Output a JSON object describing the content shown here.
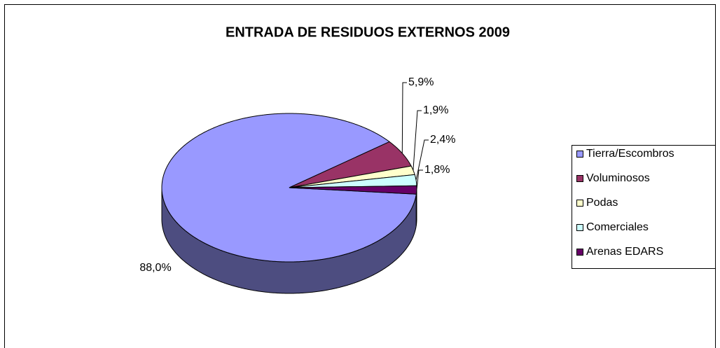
{
  "chart_data": {
    "type": "pie",
    "title": "ENTRADA DE RESIDUOS EXTERNOS 2009",
    "categories": [
      "Tierra/Escombros",
      "Voluminosos",
      "Podas",
      "Comerciales",
      "Arenas EDARS"
    ],
    "values": [
      88.0,
      5.9,
      1.9,
      2.4,
      1.8
    ],
    "value_labels": [
      "88,0%",
      "5,9%",
      "1,9%",
      "2,4%",
      "1,8%"
    ],
    "colors": [
      "#9999ff",
      "#993366",
      "#ffffcc",
      "#ccffff",
      "#660066"
    ],
    "legend": "right"
  }
}
